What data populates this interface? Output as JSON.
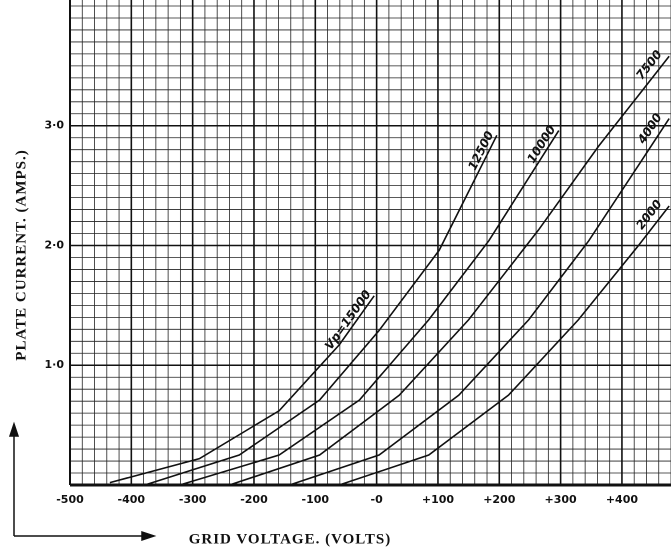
{
  "chart_data": {
    "type": "line",
    "xlabel": "GRID VOLTAGE. (VOLTS)",
    "ylabel": "PLATE CURRENT. (AMPS.)",
    "xlim": [
      -500,
      480
    ],
    "ylim": [
      0,
      4.05
    ],
    "xticks": [
      {
        "value": -500,
        "label": "-500"
      },
      {
        "value": -400,
        "label": "-400"
      },
      {
        "value": -300,
        "label": "-300"
      },
      {
        "value": -200,
        "label": "-200"
      },
      {
        "value": -100,
        "label": "-100"
      },
      {
        "value": 0,
        "label": "-0"
      },
      {
        "value": 100,
        "label": "+100"
      },
      {
        "value": 200,
        "label": "+200"
      },
      {
        "value": 300,
        "label": "+300"
      },
      {
        "value": 400,
        "label": "+400"
      }
    ],
    "yticks": [
      {
        "value": 1,
        "label": "1·0"
      },
      {
        "value": 2,
        "label": "2·0"
      },
      {
        "value": 3,
        "label": "3·0"
      }
    ],
    "grid": true,
    "minor_grid": true,
    "series": [
      {
        "name": "Vp=15000",
        "color": "#111111",
        "x": [
          -435,
          -289,
          -159,
          -61,
          -4
        ],
        "values": [
          0.02,
          0.22,
          0.62,
          1.17,
          1.58
        ]
      },
      {
        "name": "12500",
        "color": "#111111",
        "x": [
          -378,
          -224,
          -93,
          4,
          102,
          196
        ],
        "values": [
          0,
          0.25,
          0.71,
          1.29,
          1.96,
          2.92
        ]
      },
      {
        "name": "10000",
        "color": "#111111",
        "x": [
          -321,
          -159,
          -28,
          85,
          183,
          297
        ],
        "values": [
          0,
          0.25,
          0.71,
          1.38,
          2.04,
          2.96
        ]
      },
      {
        "name": "7500",
        "color": "#111111",
        "x": [
          -240,
          -93,
          37,
          150,
          264,
          362,
          477
        ],
        "values": [
          0,
          0.25,
          0.75,
          1.38,
          2.13,
          2.83,
          3.58
        ]
      },
      {
        "name": "4000",
        "color": "#111111",
        "x": [
          -142,
          4,
          134,
          248,
          346,
          427,
          477
        ],
        "values": [
          0,
          0.25,
          0.75,
          1.38,
          2.04,
          2.67,
          3.06
        ]
      },
      {
        "name": "2000",
        "color": "#111111",
        "x": [
          -61,
          85,
          215,
          329,
          427,
          477
        ],
        "values": [
          0,
          0.25,
          0.75,
          1.38,
          2.0,
          2.33
        ]
      }
    ]
  }
}
